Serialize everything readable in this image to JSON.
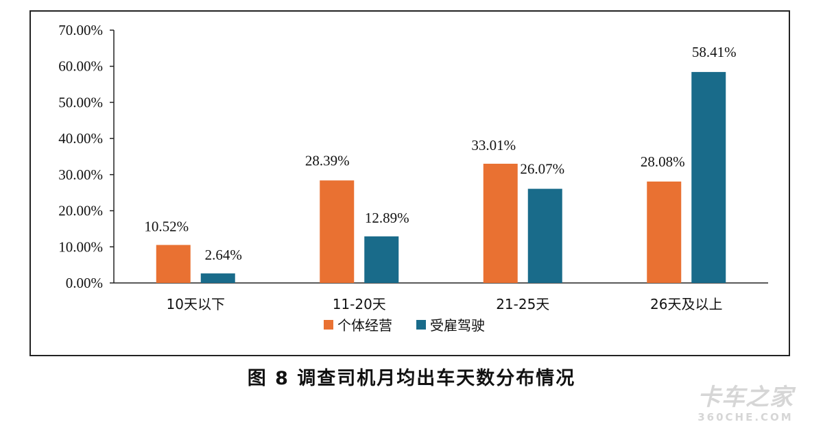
{
  "chart_data": {
    "type": "bar",
    "categories": [
      "10天以下",
      "11-20天",
      "21-25天",
      "26天及以上"
    ],
    "series": [
      {
        "name": "个体经营",
        "values": [
          10.52,
          28.39,
          33.01,
          28.08
        ],
        "labels": [
          "10.52%",
          "28.39%",
          "33.01%",
          "28.08%"
        ],
        "color": "#E97132"
      },
      {
        "name": "受雇驾驶",
        "values": [
          2.64,
          12.89,
          26.07,
          58.41
        ],
        "labels": [
          "2.64%",
          "12.89%",
          "26.07%",
          "58.41%"
        ],
        "color": "#196B8A"
      }
    ],
    "ylim": [
      0,
      70
    ],
    "yticks": [
      0,
      10,
      20,
      30,
      40,
      50,
      60,
      70
    ],
    "ytick_labels": [
      "0.00%",
      "10.00%",
      "20.00%",
      "30.00%",
      "40.00%",
      "50.00%",
      "60.00%",
      "70.00%"
    ],
    "legend_position": "bottom",
    "grid": false
  },
  "caption": "图 8  调查司机月均出车天数分布情况",
  "watermark": {
    "cn": "卡车之家",
    "en": "360CHE.COM"
  }
}
